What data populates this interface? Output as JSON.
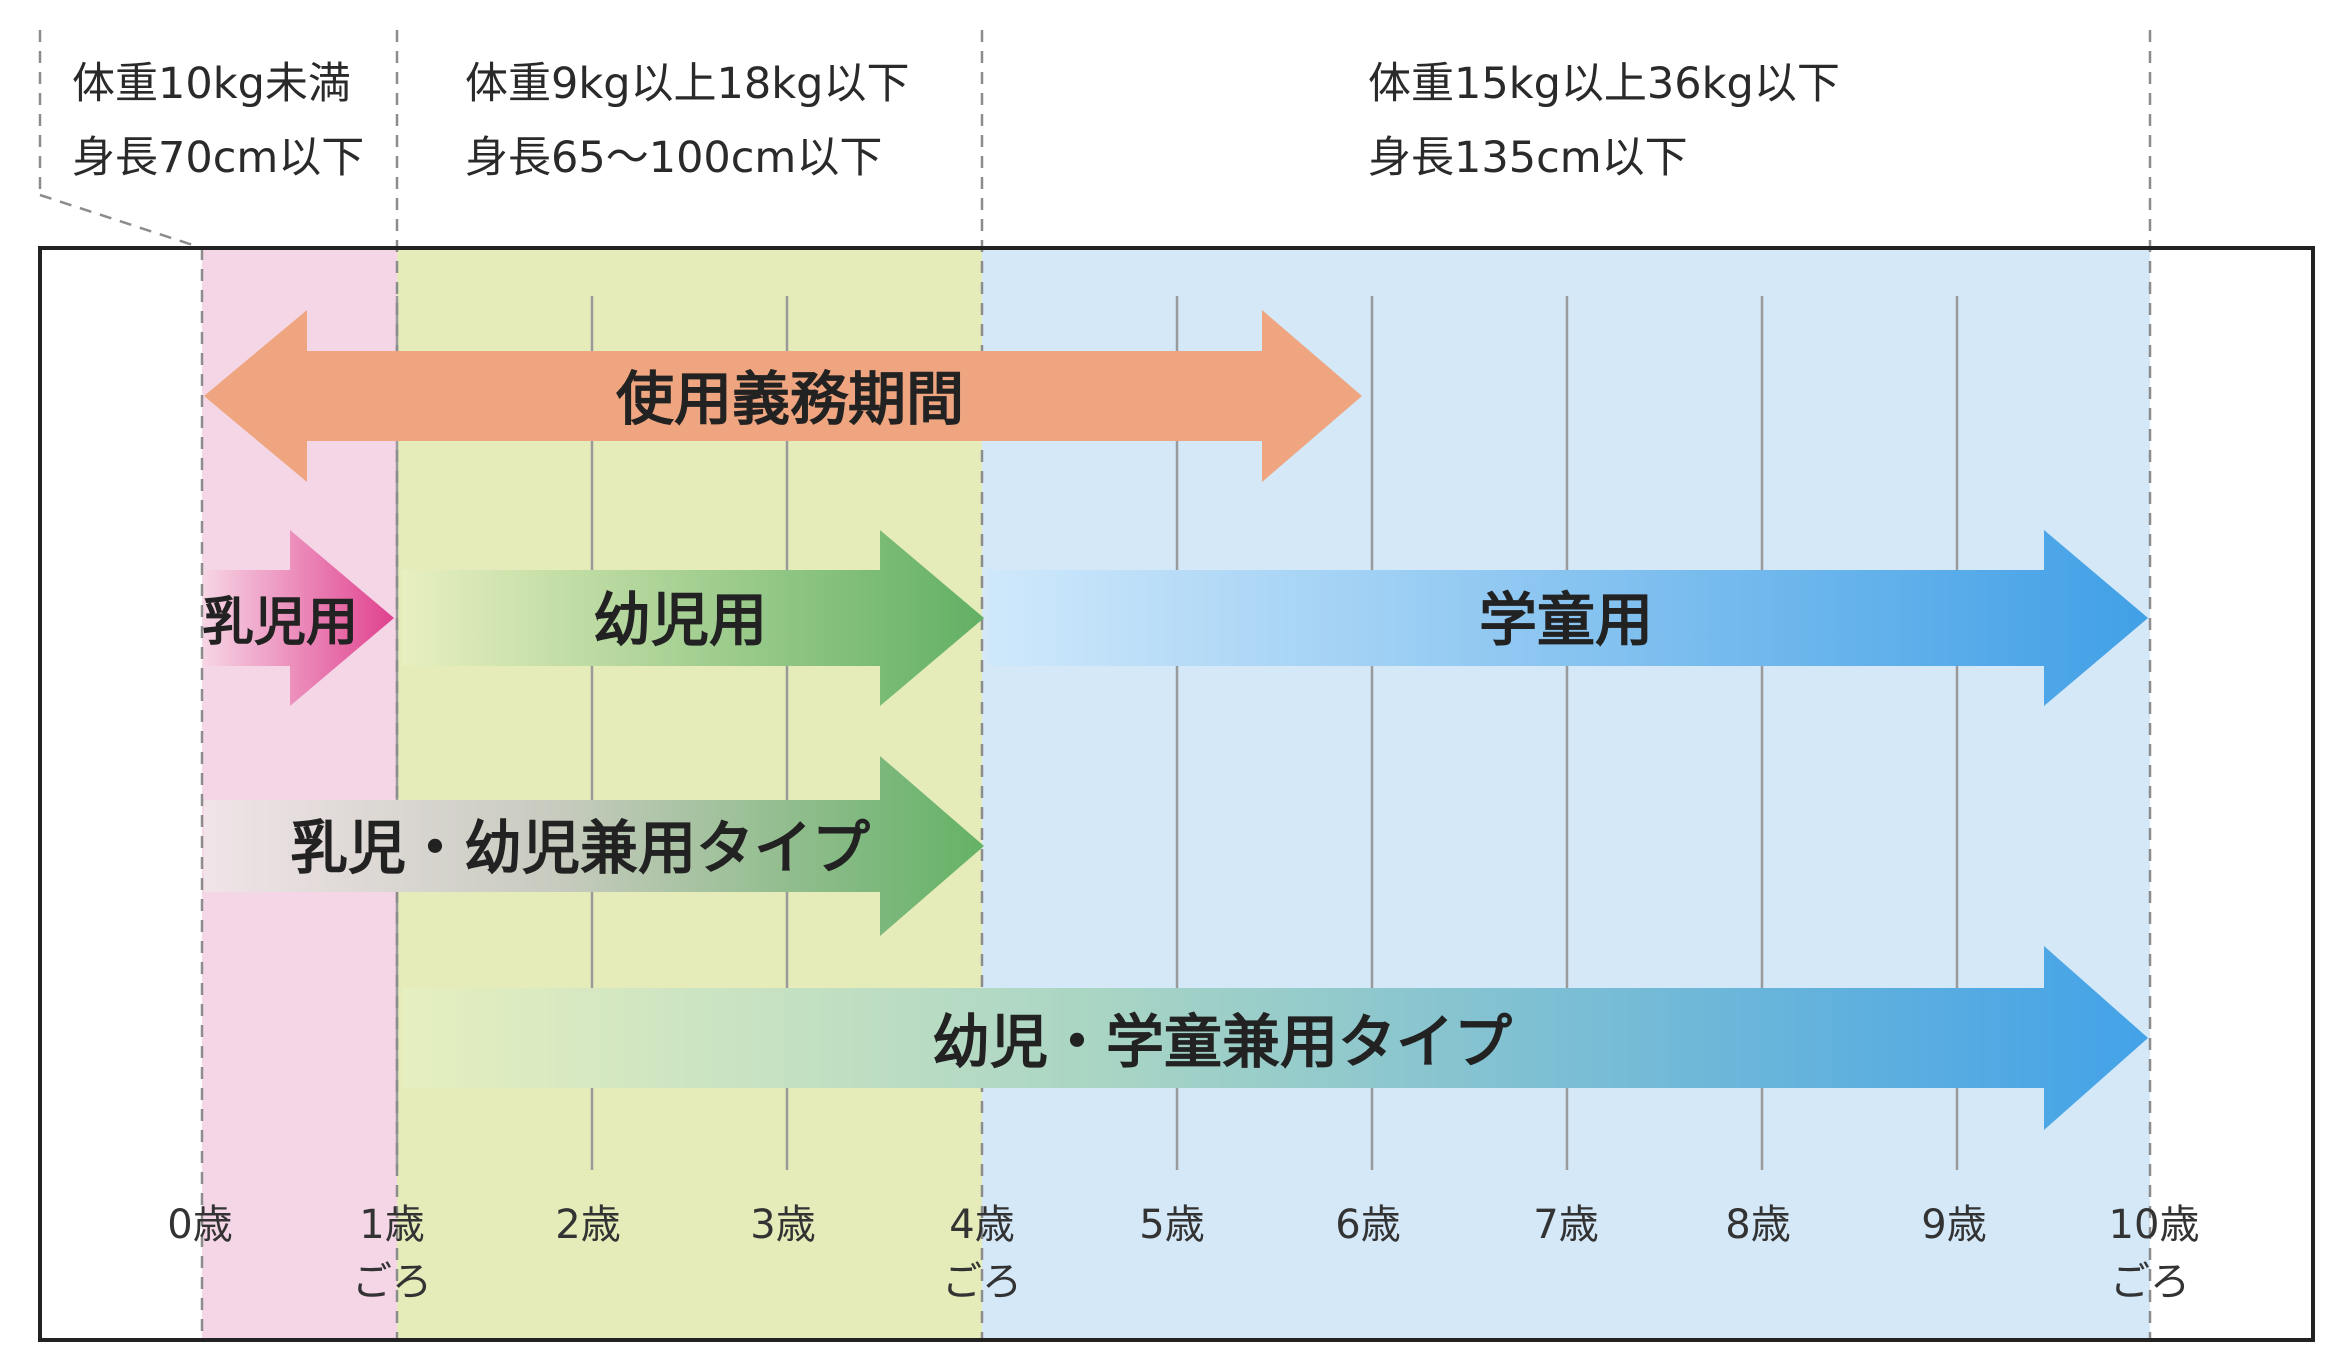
{
  "headers": [
    {
      "weight": "体重10kg未満",
      "height": "身長70cm以下"
    },
    {
      "weight": "体重9kg以上18kg以下",
      "height": "身長65～100cm以下"
    },
    {
      "weight": "体重15kg以上36kg以下",
      "height": "身長135cm以下"
    }
  ],
  "arrows": {
    "mandatory": {
      "label": "使用義務期間",
      "from_age": 0,
      "to_age": 6
    },
    "infant": {
      "label": "乳児用",
      "from_age": 0,
      "to_age": 1
    },
    "toddler": {
      "label": "幼児用",
      "from_age": 1,
      "to_age": 4
    },
    "schoolchild": {
      "label": "学童用",
      "from_age": 4,
      "to_age": 10
    },
    "infant_toddler": {
      "label": "乳児・幼児兼用タイプ",
      "from_age": 0,
      "to_age": 4
    },
    "toddler_school": {
      "label": "幼児・学童兼用タイプ",
      "from_age": 1,
      "to_age": 10
    }
  },
  "ages": [
    {
      "label": "0歳",
      "sub": ""
    },
    {
      "label": "1歳",
      "sub": "ごろ"
    },
    {
      "label": "2歳",
      "sub": ""
    },
    {
      "label": "3歳",
      "sub": ""
    },
    {
      "label": "4歳",
      "sub": "ごろ"
    },
    {
      "label": "5歳",
      "sub": ""
    },
    {
      "label": "6歳",
      "sub": ""
    },
    {
      "label": "7歳",
      "sub": ""
    },
    {
      "label": "8歳",
      "sub": ""
    },
    {
      "label": "9歳",
      "sub": ""
    },
    {
      "label": "10歳",
      "sub": "ごろ"
    }
  ],
  "colors": {
    "infant_zone": "#f4d6e6",
    "toddler_zone": "#e5ecb9",
    "school_zone": "#d4e8f8",
    "mandatory_arrow": "#eea580",
    "infant_arrow": "#e0418f",
    "toddler_arrow": "#6cb56a",
    "school_arrow": "#45a4e8"
  }
}
